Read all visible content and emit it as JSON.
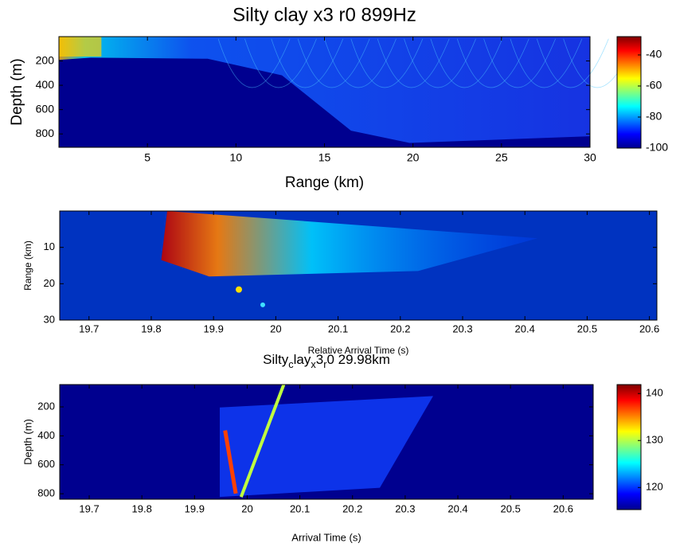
{
  "chart_data": [
    {
      "type": "heatmap",
      "title": "Silty clay x3 r0 899Hz",
      "xlabel": "Range (km)",
      "ylabel": "Depth (m)",
      "xlim": [
        0,
        30
      ],
      "xticks": [
        5,
        10,
        15,
        20,
        25,
        30
      ],
      "ylim": [
        0,
        910
      ],
      "yticks": [
        200,
        400,
        600,
        800
      ],
      "y_reversed": true,
      "colormap": "jet",
      "colorbar": {
        "clim": [
          -100,
          -28.2
        ],
        "ticks": [
          -40,
          -60,
          -80,
          -100
        ]
      }
    },
    {
      "type": "heatmap",
      "xlabel": "Relative Arrival Time (s)",
      "ylabel": "Range (km)",
      "xlim": [
        19.653,
        20.612
      ],
      "xticks": [
        19.7,
        19.8,
        19.9,
        20,
        20.1,
        20.2,
        20.3,
        20.4,
        20.5,
        20.6
      ],
      "ylim": [
        0,
        30
      ],
      "yticks": [
        10,
        20,
        30
      ],
      "y_reversed": true,
      "colormap": "jet"
    },
    {
      "type": "heatmap",
      "title": "Silty_clay_x3_r0 29.98km",
      "xlabel": "Arrival Time (s)",
      "ylabel": "Depth (m)",
      "xlim": [
        19.644,
        20.657
      ],
      "xticks": [
        19.7,
        19.8,
        19.9,
        20,
        20.1,
        20.2,
        20.3,
        20.4,
        20.5,
        20.6
      ],
      "ylim": [
        46,
        838
      ],
      "yticks": [
        200,
        400,
        600,
        800
      ],
      "y_reversed": true,
      "colormap": "jet",
      "colorbar": {
        "clim": [
          115.3,
          141.9
        ],
        "ticks": [
          140,
          130,
          120
        ]
      }
    }
  ]
}
